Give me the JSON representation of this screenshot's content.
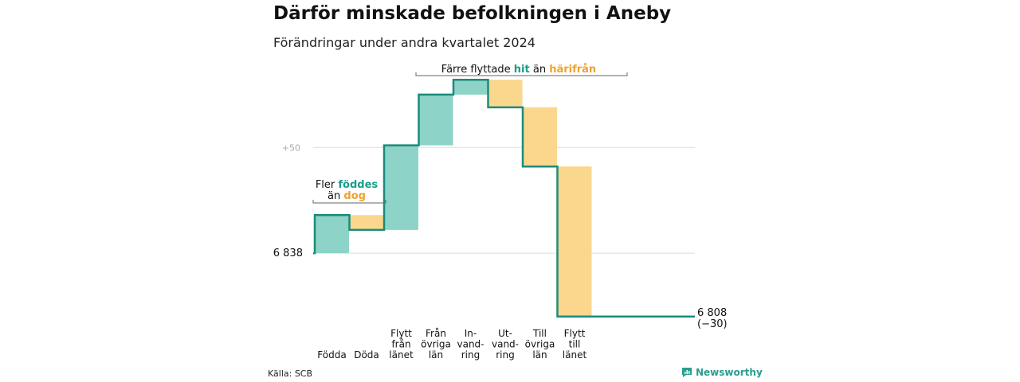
{
  "title": "Därför minskade befolkningen i Aneby",
  "subtitle": "Förändringar under andra kvartalet 2024",
  "source": "Källa: SCB",
  "brand": "Newsworthy",
  "colors": {
    "increase": "#8dd3c7",
    "decrease": "#fbd68d",
    "line": "#1a8c7c",
    "grid": "#dddddd",
    "hit": "#1a9c8a",
    "harifran": "#f0a030"
  },
  "annotations": {
    "births": {
      "line1_plain": "Fler ",
      "line1_highlight": "föddes",
      "line2_plain": "än ",
      "line2_highlight": "dog"
    },
    "moves": {
      "plain1": "Färre flyttade ",
      "highlight1": "hit",
      "plain2": " än ",
      "highlight2": "härifrån"
    }
  },
  "chart_data": {
    "type": "waterfall",
    "start_label": "6 838",
    "end_label_line1": "6 808",
    "end_label_line2": "(−30)",
    "ytick_label": "+50",
    "start_value": 6838,
    "end_value": 6808,
    "ylim": [
      6800,
      6922
    ],
    "gridlines": [
      6838,
      6888
    ],
    "categories": [
      {
        "label": [
          "Födda"
        ],
        "value": 18
      },
      {
        "label": [
          "Döda"
        ],
        "value": -7
      },
      {
        "label": [
          "Flytt",
          "från",
          "länet"
        ],
        "value": 40
      },
      {
        "label": [
          "Från",
          "övriga",
          "län"
        ],
        "value": 24
      },
      {
        "label": [
          "In-",
          "vand-",
          "ring"
        ],
        "value": 7
      },
      {
        "label": [
          "Ut-",
          "vand-",
          "ring"
        ],
        "value": -13
      },
      {
        "label": [
          "Till",
          "övriga",
          "län"
        ],
        "value": -28
      },
      {
        "label": [
          "Flytt",
          "till",
          "länet"
        ],
        "value": -71
      }
    ]
  }
}
